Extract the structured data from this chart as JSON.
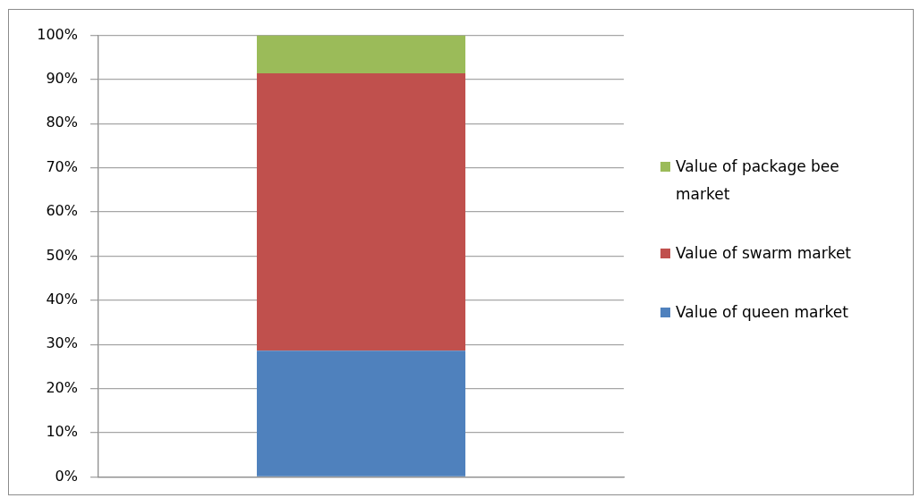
{
  "chart_data": {
    "type": "bar",
    "stacked": true,
    "categories": [
      null
    ],
    "series": [
      {
        "name": "Value of queen market",
        "color": "#4f81bd",
        "values": [
          28.6
        ]
      },
      {
        "name": "Value of swarm market",
        "color": "#c0504d",
        "values": [
          62.8
        ]
      },
      {
        "name": "Value of package bee market",
        "color": "#9bbb59",
        "values": [
          8.6
        ]
      }
    ],
    "ylim": [
      0,
      100
    ],
    "yticks": [
      {
        "value": 0,
        "label": "0%"
      },
      {
        "value": 10,
        "label": "10%"
      },
      {
        "value": 20,
        "label": "20%"
      },
      {
        "value": 30,
        "label": "30%"
      },
      {
        "value": 40,
        "label": "40%"
      },
      {
        "value": 50,
        "label": "50%"
      },
      {
        "value": 60,
        "label": "60%"
      },
      {
        "value": 70,
        "label": "70%"
      },
      {
        "value": 80,
        "label": "80%"
      },
      {
        "value": 90,
        "label": "90%"
      },
      {
        "value": 100,
        "label": "100%"
      }
    ],
    "grid": "y",
    "legend": "right"
  }
}
